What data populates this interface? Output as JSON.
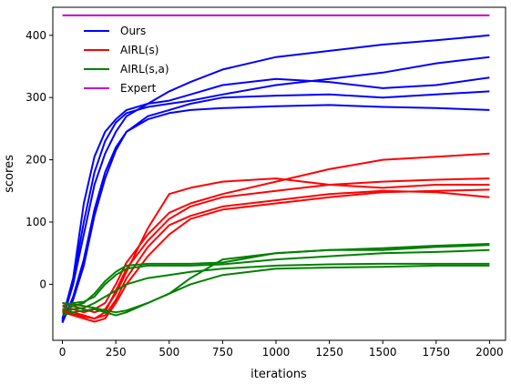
{
  "chart_data": {
    "type": "line",
    "xlabel": "iterations",
    "ylabel": "scores",
    "xlim": [
      -45,
      2075
    ],
    "ylim": [
      -90,
      445
    ],
    "xticks": [
      0,
      250,
      500,
      750,
      1000,
      1250,
      1500,
      1750,
      2000
    ],
    "yticks": [
      0,
      100,
      200,
      300,
      400
    ],
    "grid": false,
    "legend_position": "top-left",
    "series": [
      {
        "name": "Ours",
        "color": "#0000ff",
        "runs": [
          {
            "x": [
              0,
              50,
              100,
              150,
              200,
              250,
              300,
              400,
              500,
              600,
              750,
              1000,
              1250,
              1500,
              1750,
              2000
            ],
            "y": [
              -55,
              10,
              130,
              205,
              245,
              265,
              280,
              290,
              295,
              305,
              320,
              330,
              325,
              315,
              320,
              332
            ]
          },
          {
            "x": [
              0,
              50,
              100,
              150,
              200,
              250,
              300,
              400,
              500,
              600,
              750,
              1000,
              1250,
              1500,
              1750,
              2000
            ],
            "y": [
              -60,
              5,
              100,
              180,
              230,
              260,
              275,
              285,
              290,
              295,
              305,
              320,
              330,
              340,
              355,
              365
            ]
          },
          {
            "x": [
              0,
              50,
              100,
              150,
              200,
              250,
              300,
              400,
              500,
              600,
              750,
              1000,
              1250,
              1500,
              1750,
              2000
            ],
            "y": [
              -58,
              0,
              80,
              160,
              210,
              245,
              270,
              290,
              310,
              325,
              345,
              365,
              375,
              385,
              392,
              400
            ]
          },
          {
            "x": [
              0,
              50,
              100,
              150,
              200,
              250,
              300,
              400,
              500,
              600,
              750,
              1000,
              1250,
              1500,
              1750,
              2000
            ],
            "y": [
              -62,
              -20,
              40,
              120,
              180,
              220,
              245,
              265,
              275,
              280,
              283,
              286,
              288,
              285,
              283,
              280
            ]
          },
          {
            "x": [
              0,
              50,
              100,
              150,
              200,
              250,
              300,
              400,
              500,
              600,
              750,
              1000,
              1250,
              1500,
              1750,
              2000
            ],
            "y": [
              -60,
              -25,
              30,
              110,
              170,
              215,
              245,
              270,
              280,
              290,
              300,
              303,
              305,
              300,
              305,
              310
            ]
          }
        ]
      },
      {
        "name": "AIRL(s)",
        "color": "#ff0000",
        "runs": [
          {
            "x": [
              0,
              50,
              100,
              150,
              200,
              250,
              300,
              400,
              500,
              600,
              750,
              1000,
              1250,
              1500,
              1750,
              2000
            ],
            "y": [
              -35,
              -40,
              -45,
              -40,
              -30,
              0,
              35,
              80,
              115,
              130,
              145,
              165,
              185,
              200,
              205,
              210
            ]
          },
          {
            "x": [
              0,
              50,
              100,
              150,
              200,
              250,
              300,
              400,
              500,
              600,
              750,
              1000,
              1250,
              1500,
              1750,
              2000
            ],
            "y": [
              -40,
              -45,
              -50,
              -55,
              -45,
              -10,
              25,
              70,
              105,
              125,
              140,
              150,
              160,
              165,
              168,
              170
            ]
          },
          {
            "x": [
              0,
              50,
              100,
              150,
              200,
              250,
              300,
              400,
              500,
              600,
              750,
              1000,
              1250,
              1500,
              1750,
              2000
            ],
            "y": [
              -45,
              -50,
              -55,
              -60,
              -55,
              -30,
              0,
              45,
              80,
              105,
              120,
              130,
              140,
              148,
              150,
              152
            ]
          },
          {
            "x": [
              0,
              50,
              100,
              150,
              200,
              250,
              300,
              400,
              500,
              600,
              750,
              1000,
              1250,
              1500,
              1750,
              2000
            ],
            "y": [
              -42,
              -48,
              -52,
              -55,
              -50,
              -25,
              10,
              60,
              95,
              110,
              125,
              135,
              145,
              150,
              148,
              140
            ]
          },
          {
            "x": [
              0,
              50,
              100,
              150,
              200,
              250,
              300,
              400,
              500,
              600,
              750,
              1000,
              1250,
              1500,
              1750,
              2000
            ],
            "y": [
              -30,
              -35,
              -40,
              -45,
              -40,
              -15,
              20,
              90,
              145,
              155,
              165,
              170,
              160,
              155,
              160,
              160
            ]
          }
        ]
      },
      {
        "name": "AIRL(s,a)",
        "color": "#008000",
        "runs": [
          {
            "x": [
              0,
              50,
              100,
              150,
              200,
              250,
              300,
              400,
              500,
              600,
              750,
              1000,
              1250,
              1500,
              1750,
              2000
            ],
            "y": [
              -40,
              -35,
              -30,
              -15,
              5,
              20,
              30,
              33,
              33,
              33,
              35,
              50,
              55,
              58,
              62,
              65
            ]
          },
          {
            "x": [
              0,
              50,
              100,
              150,
              200,
              250,
              300,
              400,
              500,
              600,
              750,
              1000,
              1250,
              1500,
              1750,
              2000
            ],
            "y": [
              -35,
              -30,
              -28,
              -20,
              0,
              15,
              25,
              30,
              30,
              30,
              32,
              40,
              45,
              50,
              52,
              55
            ]
          },
          {
            "x": [
              0,
              50,
              100,
              150,
              200,
              250,
              300,
              400,
              500,
              600,
              750,
              1000,
              1250,
              1500,
              1750,
              2000
            ],
            "y": [
              -45,
              -40,
              -38,
              -30,
              -20,
              -10,
              0,
              10,
              15,
              20,
              25,
              30,
              32,
              33,
              33,
              33
            ]
          },
          {
            "x": [
              0,
              50,
              100,
              150,
              200,
              250,
              300,
              400,
              500,
              600,
              750,
              1000,
              1250,
              1500,
              1750,
              2000
            ],
            "y": [
              -50,
              -45,
              -42,
              -40,
              -45,
              -50,
              -45,
              -30,
              -15,
              0,
              15,
              25,
              27,
              28,
              30,
              30
            ]
          },
          {
            "x": [
              0,
              50,
              100,
              150,
              200,
              250,
              300,
              400,
              500,
              600,
              750,
              1000,
              1250,
              1500,
              1750,
              2000
            ],
            "y": [
              -30,
              -32,
              -35,
              -38,
              -42,
              -45,
              -42,
              -30,
              -15,
              10,
              40,
              50,
              55,
              55,
              60,
              63
            ]
          }
        ]
      },
      {
        "name": "Expert",
        "color": "#cc00cc",
        "runs": [
          {
            "x": [
              0,
              2000
            ],
            "y": [
              432,
              432
            ]
          }
        ]
      }
    ]
  }
}
